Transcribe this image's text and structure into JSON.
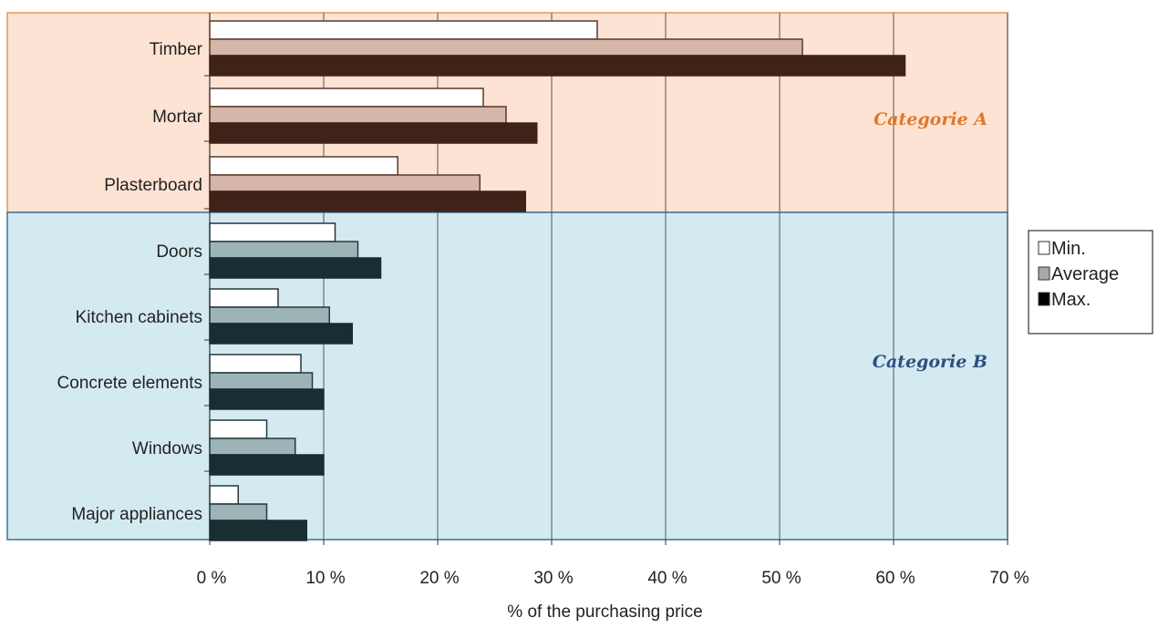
{
  "chart_data": {
    "type": "bar",
    "orientation": "horizontal",
    "categories": [
      "Timber",
      "Mortar",
      "Plasterboard",
      "Doors",
      "Kitchen cabinets",
      "Concrete elements",
      "Windows",
      "Major appliances"
    ],
    "series": [
      {
        "name": "Min.",
        "values": [
          34,
          24,
          16.5,
          11,
          6,
          8,
          5,
          2.5
        ]
      },
      {
        "name": "Average",
        "values": [
          52,
          26,
          23.7,
          13,
          10.5,
          9,
          7.5,
          5
        ]
      },
      {
        "name": "Max.",
        "values": [
          61,
          28.7,
          27.7,
          15,
          12.5,
          10,
          10,
          8.5
        ]
      }
    ],
    "xlabel": "% of the purchasing price",
    "xlim": [
      0,
      70
    ],
    "x_ticks": [
      "0 %",
      "10 %",
      "20 %",
      "30 %",
      "40 %",
      "50 %",
      "60 %",
      "70 %"
    ],
    "grid": "vertical",
    "legend_position": "right",
    "regions": [
      {
        "label": "Categorie A",
        "categories": [
          "Timber",
          "Mortar",
          "Plasterboard"
        ],
        "color": "#fde3d3",
        "label_color": "#e0782a"
      },
      {
        "label": "Categorie B",
        "categories": [
          "Doors",
          "Kitchen cabinets",
          "Concrete elements",
          "Windows",
          "Major appliances"
        ],
        "color": "#d4eaf1",
        "label_color": "#2e4f7e"
      }
    ],
    "colors": {
      "min_fill": "#ffffff",
      "avg_fill_a": "#d6b6a8",
      "avg_fill_b": "#9db4b7",
      "max_fill_a": "#3f2318",
      "max_fill_b": "#1a2d33"
    }
  }
}
